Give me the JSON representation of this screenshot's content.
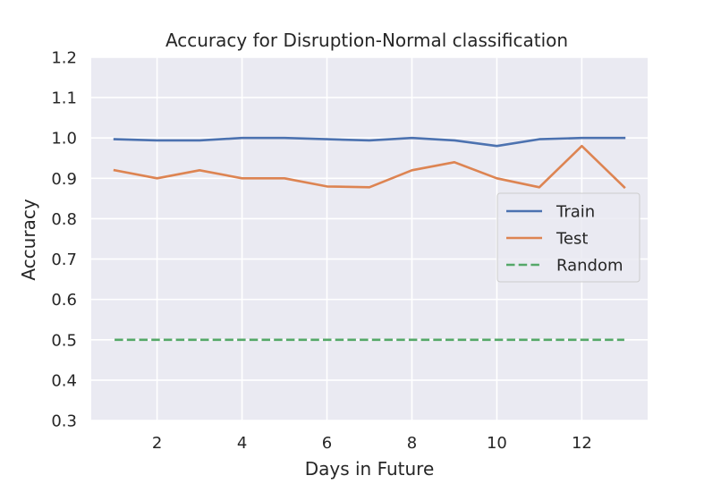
{
  "chart_data": {
    "type": "line",
    "title": "Accuracy for Disruption-Normal classification",
    "xlabel": "Days in Future",
    "ylabel": "Accuracy",
    "xlim": [
      0.45,
      13.55
    ],
    "ylim": [
      0.3,
      1.2
    ],
    "xticks": [
      2,
      4,
      6,
      8,
      10,
      12
    ],
    "xtick_labels": [
      "2",
      "4",
      "6",
      "8",
      "10",
      "12"
    ],
    "yticks": [
      0.3,
      0.4,
      0.5,
      0.6,
      0.7,
      0.8,
      0.9,
      1.0,
      1.1,
      1.2
    ],
    "ytick_labels": [
      "0.3",
      "0.4",
      "0.5",
      "0.6",
      "0.7",
      "0.8",
      "0.9",
      "1.0",
      "1.1",
      "1.2"
    ],
    "grid": true,
    "legend_position": "center-right",
    "x": [
      1,
      2,
      3,
      4,
      5,
      6,
      7,
      8,
      9,
      10,
      11,
      12,
      13
    ],
    "series": [
      {
        "name": "Train",
        "color": "#4c72b0",
        "linestyle": "solid",
        "values": [
          0.997,
          0.994,
          0.994,
          1.0,
          1.0,
          0.997,
          0.994,
          1.0,
          0.994,
          0.98,
          0.997,
          1.0,
          1.0
        ]
      },
      {
        "name": "Test",
        "color": "#dd8452",
        "linestyle": "solid",
        "values": [
          0.92,
          0.9,
          0.92,
          0.9,
          0.9,
          0.88,
          0.878,
          0.92,
          0.94,
          0.9,
          0.878,
          0.98,
          0.878
        ]
      },
      {
        "name": "Random",
        "color": "#55a868",
        "linestyle": "dashed",
        "values": [
          0.5,
          0.5,
          0.5,
          0.5,
          0.5,
          0.5,
          0.5,
          0.5,
          0.5,
          0.5,
          0.5,
          0.5,
          0.5
        ]
      }
    ],
    "colors": {
      "plot_background": "#eaeaf2",
      "grid": "#ffffff",
      "text": "#262626"
    }
  }
}
